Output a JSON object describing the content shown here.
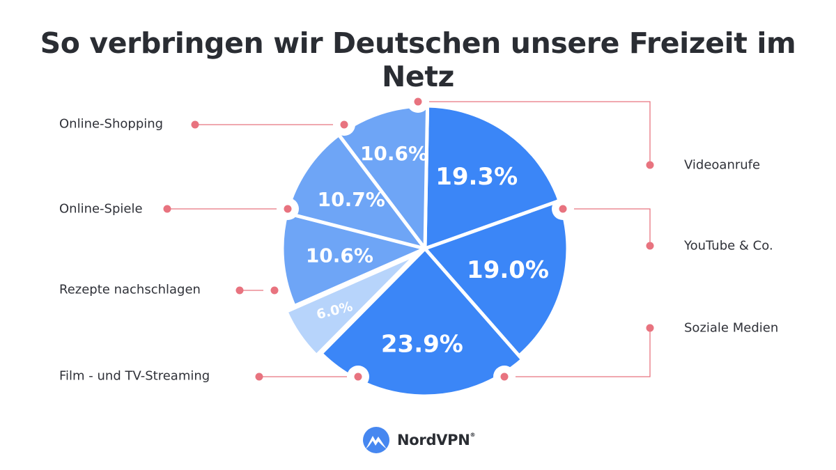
{
  "title": "So verbringen wir Deutschen unsere Freizeit im Netz",
  "brand": "NordVPN",
  "colors": {
    "dark_blue": "#3b86f7",
    "mid_blue": "#6ea5f6",
    "light_blue": "#b7d4fb",
    "connector": "#e8737f"
  },
  "chart_data": {
    "type": "pie",
    "title": "So verbringen wir Deutschen unsere Freizeit im Netz",
    "slices": [
      {
        "label": "YouTube & Co.",
        "value": 19.3,
        "display": "19.3%",
        "color": "#3b86f7"
      },
      {
        "label": "Soziale Medien",
        "value": 19.0,
        "display": "19.0%",
        "color": "#3b86f7"
      },
      {
        "label": "Film - und TV-Streaming",
        "value": 23.9,
        "display": "23.9%",
        "color": "#3b86f7"
      },
      {
        "label": "Rezepte nachschlagen",
        "value": 6.0,
        "display": "6.0%",
        "color": "#b7d4fb"
      },
      {
        "label": "Online-Spiele",
        "value": 10.6,
        "display": "10.6%",
        "color": "#6ea5f6"
      },
      {
        "label": "Online-Shopping",
        "value": 10.7,
        "display": "10.7%",
        "color": "#6ea5f6"
      },
      {
        "label": "Videoanrufe",
        "value": 10.6,
        "display": "10.6%",
        "color": "#6ea5f6"
      }
    ]
  }
}
